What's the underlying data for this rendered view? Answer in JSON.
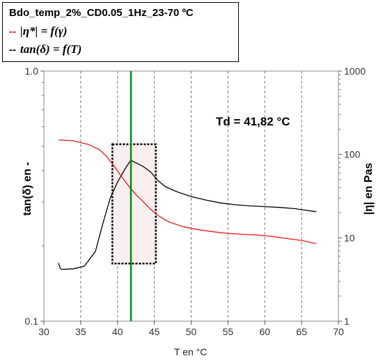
{
  "legend": {
    "title": "Bdo_temp_2%_CD0.05_1Hz_23-70 ºC",
    "entries": [
      {
        "swatch": "--",
        "label": "|η*| = f(γ)",
        "color": "#e8191b"
      },
      {
        "swatch": "--",
        "label": "tan(δ) = f(T)",
        "color": "#000000"
      }
    ]
  },
  "chart_data": {
    "type": "line",
    "xlabel": "T en °C",
    "ylabel_left": "tan(δ) en -",
    "ylabel_right": "|η| en Pas",
    "xlim": [
      30,
      70
    ],
    "xticks": [
      30,
      35,
      40,
      45,
      50,
      55,
      60,
      65,
      70
    ],
    "ylim_left": [
      0.1,
      1.0
    ],
    "yticks_left": [
      "0.1",
      "1.0"
    ],
    "ylim_right": [
      1,
      1000
    ],
    "yticks_right": [
      "1",
      "10",
      "100",
      "1000"
    ],
    "log_y": true,
    "grid": "vertical dashed",
    "series": [
      {
        "label": "tan(δ) = f(T)",
        "axis": "left",
        "color": "#000000",
        "x": [
          32.0,
          32.2,
          32.4,
          34.0,
          35.5,
          37.0,
          38.0,
          39.0,
          40.0,
          41.0,
          41.8,
          42.5,
          43.5,
          44.5,
          45.5,
          46.5,
          48.0,
          50.0,
          52.0,
          54.0,
          56.0,
          58.0,
          60.0,
          62.0,
          64.0,
          65.5,
          67.0
        ],
        "y": [
          0.171,
          0.163,
          0.161,
          0.162,
          0.166,
          0.19,
          0.245,
          0.31,
          0.36,
          0.405,
          0.44,
          0.43,
          0.415,
          0.395,
          0.365,
          0.345,
          0.33,
          0.315,
          0.305,
          0.297,
          0.292,
          0.289,
          0.287,
          0.285,
          0.282,
          0.278,
          0.274
        ]
      },
      {
        "label": "|η*| = f(γ)",
        "axis": "right",
        "color": "#e8191b",
        "x": [
          32.0,
          34.0,
          36.0,
          37.5,
          38.5,
          39.5,
          40.5,
          41.5,
          42.5,
          43.5,
          44.5,
          45.5,
          47.0,
          49.0,
          51.0,
          53.0,
          55.0,
          57.0,
          59.0,
          61.0,
          63.0,
          65.0,
          67.0
        ],
        "y": [
          149,
          146,
          132,
          115,
          95,
          73,
          55,
          42,
          33,
          27,
          22,
          18.5,
          15.5,
          13.5,
          12.5,
          11.8,
          11.3,
          11.0,
          10.8,
          10.4,
          9.8,
          9.3,
          8.5
        ]
      }
    ],
    "annotations": [
      {
        "text": "Td = 41,82 °C",
        "x": 41.82,
        "type": "vertical-line",
        "color": "#008a10"
      }
    ],
    "highlight_box": {
      "x": [
        39.3,
        45.2
      ],
      "y_left": [
        0.17,
        0.51
      ]
    }
  }
}
